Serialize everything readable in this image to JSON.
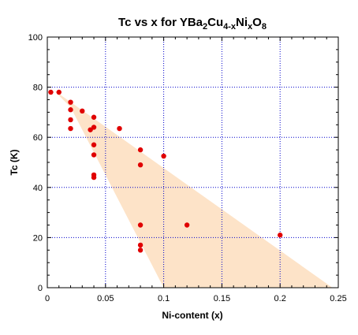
{
  "chart_data": {
    "type": "scatter",
    "title": "Tc vs x for YBa₂Cu₄₋ₓNiₓO₈",
    "title_parts": {
      "prefix": "Tc vs x for YBa",
      "sub1": "2",
      "mid1": "Cu",
      "sub2": "4-x",
      "mid2": "Ni",
      "sub3": "x",
      "mid3": "O",
      "sub4": "8"
    },
    "xlabel": "Ni-content (x)",
    "ylabel": "Tc (K)",
    "xlim": [
      0,
      0.25
    ],
    "ylim": [
      0,
      100
    ],
    "x_ticks": [
      "0",
      "0.05",
      "0.1",
      "0.15",
      "0.2",
      "0.25"
    ],
    "x_tick_values": [
      0,
      0.05,
      0.1,
      0.15,
      0.2,
      0.25
    ],
    "y_ticks": [
      "0",
      "20",
      "40",
      "60",
      "80",
      "100"
    ],
    "y_tick_values": [
      0,
      20,
      40,
      60,
      80,
      100
    ],
    "grid": true,
    "legend": "none",
    "colors": {
      "points": "#e00000",
      "grid": "#0000cc",
      "shaded_region": "#fde3c8"
    },
    "shaded_region": {
      "x": [
        0.005,
        0.245,
        0.1,
        0.1,
        0.02
      ],
      "y": [
        79,
        0,
        0,
        0,
        72
      ]
    },
    "series": [
      {
        "x": [
          0.003,
          0.01,
          0.02,
          0.02,
          0.02,
          0.02,
          0.03,
          0.037,
          0.04,
          0.04,
          0.04,
          0.04,
          0.04,
          0.04,
          0.062,
          0.08,
          0.08,
          0.08,
          0.08,
          0.08,
          0.1,
          0.12,
          0.2
        ],
        "y": [
          78,
          78,
          74,
          71,
          67,
          63.5,
          70.5,
          63,
          68,
          64,
          57,
          53,
          45,
          44,
          63.5,
          55,
          49,
          25,
          17,
          15,
          52.5,
          25,
          21
        ]
      }
    ]
  }
}
